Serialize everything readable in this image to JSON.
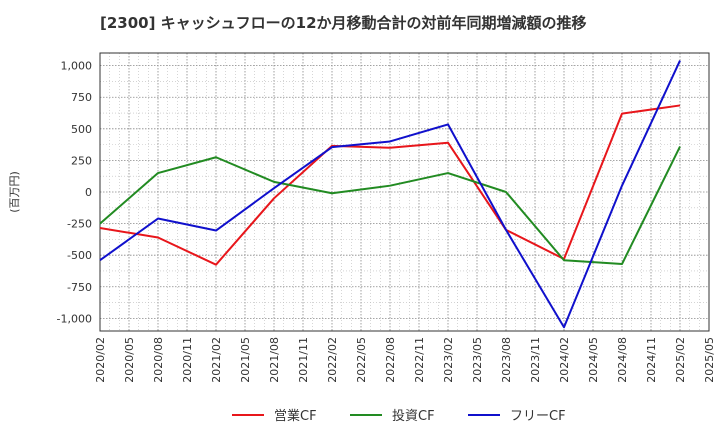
{
  "chart_data": {
    "type": "line",
    "title": "[2300]  キャッシュフローの12か月移動合計の対前年同期増減額の推移",
    "ylabel": "(百万円)",
    "xlabel": "",
    "ylim": [
      -1100,
      1100
    ],
    "yticks": [
      1000,
      750,
      500,
      250,
      0,
      -250,
      -500,
      -750,
      -1000
    ],
    "ytick_labels": [
      "1,000",
      "750",
      "500",
      "250",
      "0",
      "-250",
      "-500",
      "-750",
      "-1,000"
    ],
    "x_tick_labels": [
      "2020/02",
      "2020/05",
      "2020/08",
      "2020/11",
      "2021/02",
      "2021/05",
      "2021/08",
      "2021/11",
      "2022/02",
      "2022/05",
      "2022/08",
      "2022/11",
      "2023/02",
      "2023/05",
      "2023/08",
      "2023/11",
      "2024/02",
      "2024/05",
      "2024/08",
      "2024/11",
      "2025/02",
      "2025/05"
    ],
    "grid": true,
    "legend_position": "bottom",
    "series": [
      {
        "name": "営業CF",
        "color": "#e8161b",
        "x": [
          "2020/02",
          "2020/08",
          "2021/02",
          "2021/08",
          "2022/02",
          "2022/08",
          "2023/02",
          "2023/08",
          "2024/02",
          "2024/08",
          "2025/02"
        ],
        "values": [
          -285,
          -360,
          -575,
          -50,
          365,
          350,
          390,
          -300,
          -530,
          620,
          685
        ]
      },
      {
        "name": "投資CF",
        "color": "#228b22",
        "x": [
          "2020/02",
          "2020/08",
          "2021/02",
          "2021/08",
          "2022/02",
          "2022/08",
          "2023/02",
          "2023/08",
          "2024/02",
          "2024/08",
          "2025/02"
        ],
        "values": [
          -250,
          150,
          275,
          80,
          -10,
          50,
          150,
          0,
          -540,
          -570,
          360
        ]
      },
      {
        "name": "フリーCF",
        "color": "#1010cc",
        "x": [
          "2020/02",
          "2020/08",
          "2021/02",
          "2021/08",
          "2022/02",
          "2022/08",
          "2023/02",
          "2023/08",
          "2024/02",
          "2024/08",
          "2025/02"
        ],
        "values": [
          -540,
          -210,
          -305,
          30,
          355,
          400,
          535,
          -300,
          -1070,
          50,
          1040
        ]
      }
    ]
  }
}
